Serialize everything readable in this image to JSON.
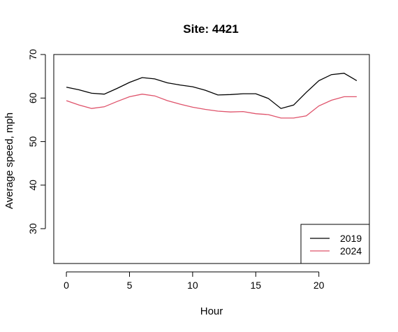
{
  "chart_data": {
    "type": "line",
    "title": "Site: 4421",
    "xlabel": "Hour",
    "ylabel": "Average speed, mph",
    "xlim": [
      -1,
      24
    ],
    "ylim": [
      22,
      70
    ],
    "x_ticks": [
      0,
      5,
      10,
      15,
      20
    ],
    "y_ticks": [
      30,
      40,
      50,
      60,
      70
    ],
    "grid": false,
    "legend_position": "bottom-right",
    "x": [
      0,
      1,
      2,
      3,
      4,
      5,
      6,
      7,
      8,
      9,
      10,
      11,
      12,
      13,
      14,
      15,
      16,
      17,
      18,
      19,
      20,
      21,
      22,
      23
    ],
    "series": [
      {
        "name": "2019",
        "color": "#000000",
        "values": [
          62.5,
          61.9,
          61.1,
          60.9,
          62.2,
          63.6,
          64.7,
          64.4,
          63.5,
          63.0,
          62.6,
          61.8,
          60.7,
          60.8,
          61.0,
          61.0,
          59.9,
          57.6,
          58.4,
          61.3,
          64.0,
          65.4,
          65.7,
          64.0
        ]
      },
      {
        "name": "2024",
        "color": "#DF536B",
        "values": [
          59.4,
          58.4,
          57.6,
          58.0,
          59.2,
          60.3,
          60.9,
          60.5,
          59.4,
          58.6,
          57.9,
          57.4,
          57.0,
          56.8,
          56.9,
          56.4,
          56.2,
          55.4,
          55.4,
          55.9,
          58.2,
          59.5,
          60.3,
          60.3
        ]
      }
    ]
  }
}
